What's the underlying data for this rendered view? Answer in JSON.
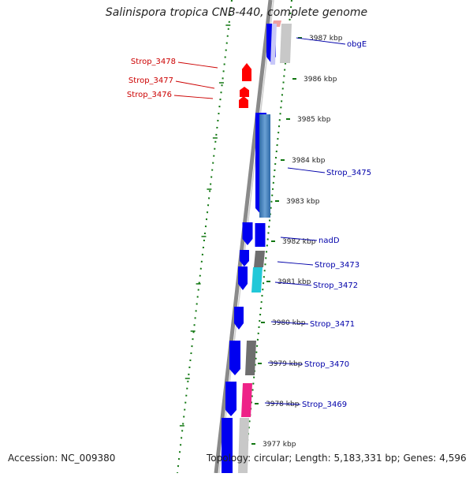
{
  "title": "Salinispora tropica CNB-440, complete genome",
  "accession": "Accession: NC_009380",
  "topology": "Topology: circular; Length: 5,183,331 bp; Genes: 4,596",
  "colors": {
    "backbone": "#8a8a8a",
    "forward_gene": "#0000f0",
    "reverse_gene": "#ff0000",
    "dotted_ring": "#117711",
    "label_forward": "#0000aa",
    "label_reverse": "#cc0000"
  },
  "ticks": [
    {
      "label": "3987 kbp"
    },
    {
      "label": "3986 kbp"
    },
    {
      "label": "3985 kbp"
    },
    {
      "label": "3984 kbp"
    },
    {
      "label": "3983 kbp"
    },
    {
      "label": "3982 kbp"
    },
    {
      "label": "3981 kbp"
    },
    {
      "label": "3980 kbp"
    },
    {
      "label": "3979 kbp"
    },
    {
      "label": "3978 kbp"
    },
    {
      "label": "3977 kbp"
    }
  ],
  "gene_labels": [
    {
      "name": "obgE",
      "strand": "forward"
    },
    {
      "name": "Strop_3478",
      "strand": "reverse"
    },
    {
      "name": "Strop_3477",
      "strand": "reverse"
    },
    {
      "name": "Strop_3476",
      "strand": "reverse"
    },
    {
      "name": "Strop_3475",
      "strand": "forward"
    },
    {
      "name": "nadD",
      "strand": "forward"
    },
    {
      "name": "Strop_3473",
      "strand": "forward"
    },
    {
      "name": "Strop_3472",
      "strand": "forward"
    },
    {
      "name": "Strop_3471",
      "strand": "forward"
    },
    {
      "name": "Strop_3470",
      "strand": "forward"
    },
    {
      "name": "Strop_3469",
      "strand": "forward"
    }
  ]
}
